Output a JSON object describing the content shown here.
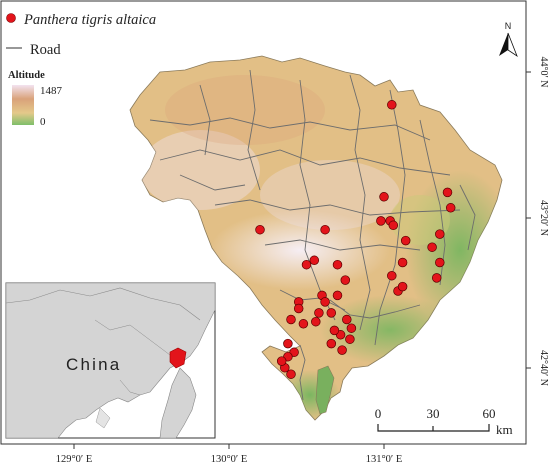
{
  "legend": {
    "species": "Panthera tigris altaica",
    "road": "Road",
    "altitude_title": "Altitude",
    "altitude_max": "1487",
    "altitude_min": "0"
  },
  "north_label": "N",
  "scalebar": {
    "ticks": [
      "0",
      "30",
      "60"
    ],
    "unit": "km"
  },
  "inset": {
    "country_label": "China"
  },
  "lon_labels": [
    "129°0′ E",
    "130°0′ E",
    "131°0′ E"
  ],
  "lat_labels": [
    "44°0′ N",
    "43°20′ N",
    "42°40′ N"
  ],
  "colors": {
    "point": "#e3141b",
    "terrain_low": "#7fbf6a",
    "terrain_mid": "#e4c98a",
    "terrain_high": "#f3e3f0",
    "inset_land": "#d4d4d4",
    "inset_highlight": "#e3141b"
  },
  "tiger_points": [
    [
      131.05,
      43.85
    ],
    [
      131.0,
      43.43
    ],
    [
      131.04,
      43.32
    ],
    [
      130.98,
      43.32
    ],
    [
      131.06,
      43.3
    ],
    [
      131.14,
      43.23
    ],
    [
      131.05,
      43.07
    ],
    [
      131.09,
      43.0
    ],
    [
      131.12,
      43.02
    ]
  ]
}
